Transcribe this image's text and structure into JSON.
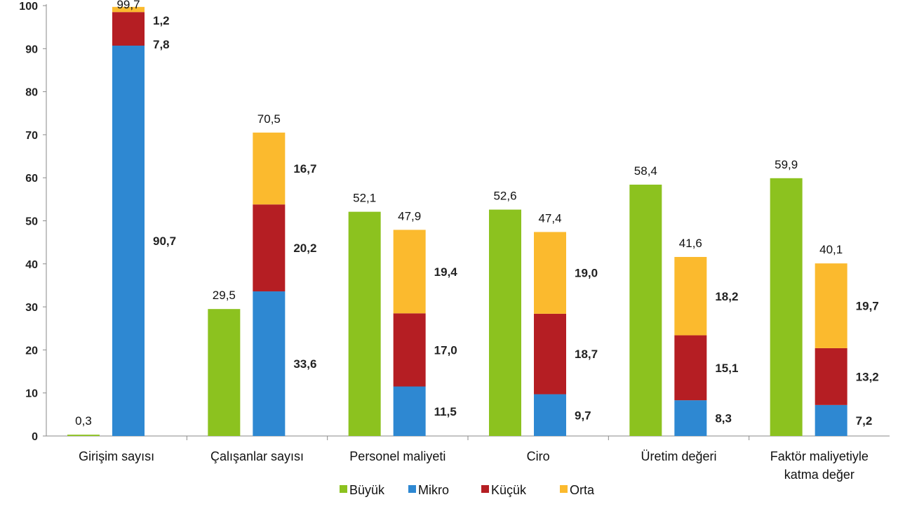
{
  "chart_data": {
    "type": "bar",
    "ylim": [
      0,
      100
    ],
    "yticks": [
      "0",
      "10",
      "20",
      "30",
      "40",
      "50",
      "60",
      "70",
      "80",
      "90",
      "100"
    ],
    "grid": false,
    "legend_position": "bottom",
    "groups": [
      {
        "label_lines": [
          "Girişim sayısı"
        ],
        "buyuk": {
          "value": 0.3,
          "label": "0,3"
        },
        "stack": {
          "total_label": "99,7",
          "mikro": {
            "value": 90.7,
            "label": "90,7"
          },
          "kucuk": {
            "value": 7.8,
            "label": "7,8"
          },
          "orta": {
            "value": 1.2,
            "label": "1,2"
          }
        }
      },
      {
        "label_lines": [
          "Çalışanlar sayısı"
        ],
        "buyuk": {
          "value": 29.5,
          "label": "29,5"
        },
        "stack": {
          "total_label": "70,5",
          "mikro": {
            "value": 33.6,
            "label": "33,6"
          },
          "kucuk": {
            "value": 20.2,
            "label": "20,2"
          },
          "orta": {
            "value": 16.7,
            "label": "16,7"
          }
        }
      },
      {
        "label_lines": [
          "Personel maliyeti"
        ],
        "buyuk": {
          "value": 52.1,
          "label": "52,1"
        },
        "stack": {
          "total_label": "47,9",
          "mikro": {
            "value": 11.5,
            "label": "11,5"
          },
          "kucuk": {
            "value": 17.0,
            "label": "17,0"
          },
          "orta": {
            "value": 19.4,
            "label": "19,4"
          }
        }
      },
      {
        "label_lines": [
          "Ciro"
        ],
        "buyuk": {
          "value": 52.6,
          "label": "52,6"
        },
        "stack": {
          "total_label": "47,4",
          "mikro": {
            "value": 9.7,
            "label": "9,7"
          },
          "kucuk": {
            "value": 18.7,
            "label": "18,7"
          },
          "orta": {
            "value": 19.0,
            "label": "19,0"
          }
        }
      },
      {
        "label_lines": [
          "Üretim değeri"
        ],
        "buyuk": {
          "value": 58.4,
          "label": "58,4"
        },
        "stack": {
          "total_label": "41,6",
          "mikro": {
            "value": 8.3,
            "label": "8,3"
          },
          "kucuk": {
            "value": 15.1,
            "label": "15,1"
          },
          "orta": {
            "value": 18.2,
            "label": "18,2"
          }
        }
      },
      {
        "label_lines": [
          "Faktör maliyetiyle",
          "katma değer"
        ],
        "buyuk": {
          "value": 59.9,
          "label": "59,9"
        },
        "stack": {
          "total_label": "40,1",
          "mikro": {
            "value": 7.2,
            "label": "7,2"
          },
          "kucuk": {
            "value": 13.2,
            "label": "13,2"
          },
          "orta": {
            "value": 19.7,
            "label": "19,7"
          }
        }
      }
    ],
    "legend": [
      {
        "key": "buyuk",
        "name": "Büyük",
        "color": "#8cc21f"
      },
      {
        "key": "mikro",
        "name": "Mikro",
        "color": "#2e88d2"
      },
      {
        "key": "kucuk",
        "name": "Küçük",
        "color": "#b51e23"
      },
      {
        "key": "orta",
        "name": "Orta",
        "color": "#fbba2e"
      }
    ]
  }
}
